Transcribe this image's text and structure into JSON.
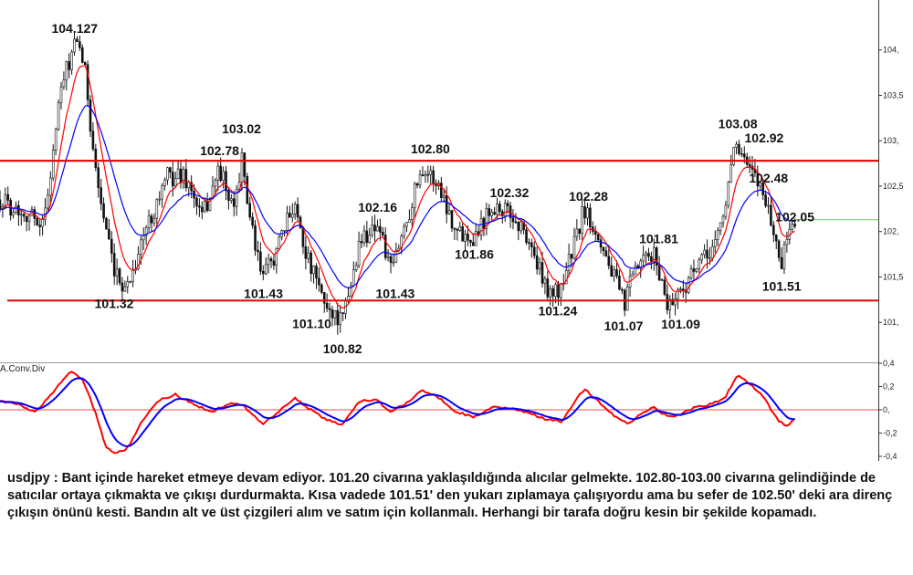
{
  "chart_data": [
    {
      "type": "candlestick",
      "title": "usdjpy",
      "ylim": [
        100.6,
        104.55
      ],
      "yticks": [
        "104,",
        "103,5",
        "103,",
        "102,5",
        "102,",
        "101,5",
        "101,"
      ],
      "horizontal_lines": [
        {
          "value": 102.78,
          "color": "#e01010"
        },
        {
          "value": 101.24,
          "color": "#e01010"
        },
        {
          "value": 102.13,
          "color": "#66cc66"
        }
      ],
      "series": [
        {
          "color": "#ff0000",
          "desc": "fast moving average"
        },
        {
          "color": "#0000ff",
          "desc": "slow moving average"
        }
      ],
      "key_levels": [
        {
          "label": "104.127",
          "x": 0.085,
          "value": 104.127
        },
        {
          "label": "101.32",
          "x": 0.13,
          "value": 101.32
        },
        {
          "label": "102.78",
          "x": 0.25,
          "value": 102.78
        },
        {
          "label": "103.02",
          "x": 0.275,
          "value": 103.02
        },
        {
          "label": "101.43",
          "x": 0.3,
          "value": 101.43
        },
        {
          "label": "101.10",
          "x": 0.355,
          "value": 101.1
        },
        {
          "label": "100.82",
          "x": 0.39,
          "value": 100.82
        },
        {
          "label": "102.16",
          "x": 0.43,
          "value": 102.16
        },
        {
          "label": "101.43",
          "x": 0.45,
          "value": 101.43
        },
        {
          "label": "102.80",
          "x": 0.49,
          "value": 102.8
        },
        {
          "label": "101.86",
          "x": 0.54,
          "value": 101.86
        },
        {
          "label": "102.32",
          "x": 0.58,
          "value": 102.32
        },
        {
          "label": "101.24",
          "x": 0.635,
          "value": 101.24
        },
        {
          "label": "102.28",
          "x": 0.67,
          "value": 102.28
        },
        {
          "label": "101.07",
          "x": 0.71,
          "value": 101.07
        },
        {
          "label": "101.81",
          "x": 0.75,
          "value": 101.81
        },
        {
          "label": "101.09",
          "x": 0.775,
          "value": 101.09
        },
        {
          "label": "103.08",
          "x": 0.84,
          "value": 103.08
        },
        {
          "label": "102.92",
          "x": 0.87,
          "value": 102.92
        },
        {
          "label": "102.48",
          "x": 0.875,
          "value": 102.48
        },
        {
          "label": "102.05",
          "x": 0.905,
          "value": 102.05
        },
        {
          "label": "101.51",
          "x": 0.89,
          "value": 101.51
        }
      ],
      "price_path": [
        [
          0.0,
          102.35
        ],
        [
          0.03,
          102.2
        ],
        [
          0.05,
          102.1
        ],
        [
          0.07,
          103.6
        ],
        [
          0.085,
          104.05
        ],
        [
          0.095,
          103.9
        ],
        [
          0.11,
          102.6
        ],
        [
          0.13,
          101.5
        ],
        [
          0.145,
          101.4
        ],
        [
          0.165,
          102.0
        ],
        [
          0.19,
          102.6
        ],
        [
          0.21,
          102.62
        ],
        [
          0.23,
          102.15
        ],
        [
          0.25,
          102.7
        ],
        [
          0.265,
          102.2
        ],
        [
          0.275,
          102.8
        ],
        [
          0.29,
          101.8
        ],
        [
          0.3,
          101.5
        ],
        [
          0.32,
          101.9
        ],
        [
          0.335,
          102.35
        ],
        [
          0.35,
          101.7
        ],
        [
          0.37,
          101.2
        ],
        [
          0.39,
          101.0
        ],
        [
          0.41,
          101.9
        ],
        [
          0.43,
          102.1
        ],
        [
          0.445,
          101.55
        ],
        [
          0.465,
          102.2
        ],
        [
          0.48,
          102.72
        ],
        [
          0.5,
          102.5
        ],
        [
          0.52,
          102.0
        ],
        [
          0.54,
          101.95
        ],
        [
          0.56,
          102.3
        ],
        [
          0.58,
          102.2
        ],
        [
          0.6,
          101.95
        ],
        [
          0.62,
          101.4
        ],
        [
          0.635,
          101.3
        ],
        [
          0.655,
          101.9
        ],
        [
          0.665,
          102.25
        ],
        [
          0.68,
          102.0
        ],
        [
          0.695,
          101.6
        ],
        [
          0.71,
          101.2
        ],
        [
          0.725,
          101.6
        ],
        [
          0.745,
          101.75
        ],
        [
          0.76,
          101.2
        ],
        [
          0.775,
          101.35
        ],
        [
          0.79,
          101.55
        ],
        [
          0.81,
          101.8
        ],
        [
          0.825,
          102.2
        ],
        [
          0.835,
          103.0
        ],
        [
          0.845,
          102.8
        ],
        [
          0.855,
          102.65
        ],
        [
          0.87,
          102.45
        ],
        [
          0.88,
          102.0
        ],
        [
          0.89,
          101.65
        ],
        [
          0.9,
          102.1
        ],
        [
          0.905,
          102.1
        ]
      ]
    },
    {
      "type": "line",
      "title": "A.Conv.Div",
      "ylim": [
        -0.4,
        0.4
      ],
      "yticks": [
        "0,4",
        "0,2",
        "0,",
        "-0,2",
        "-0,4"
      ],
      "horizontal_lines": [
        {
          "value": 0,
          "color": "#e01010"
        }
      ],
      "series": [
        {
          "color": "#ff0000",
          "desc": "MACD line"
        },
        {
          "color": "#0000ff",
          "desc": "signal line"
        }
      ],
      "macd_path": [
        [
          0.0,
          0.07
        ],
        [
          0.02,
          0.05
        ],
        [
          0.04,
          -0.02
        ],
        [
          0.06,
          0.15
        ],
        [
          0.08,
          0.33
        ],
        [
          0.095,
          0.25
        ],
        [
          0.11,
          -0.05
        ],
        [
          0.12,
          -0.32
        ],
        [
          0.13,
          -0.38
        ],
        [
          0.145,
          -0.33
        ],
        [
          0.16,
          -0.12
        ],
        [
          0.18,
          0.08
        ],
        [
          0.2,
          0.13
        ],
        [
          0.22,
          0.05
        ],
        [
          0.24,
          -0.02
        ],
        [
          0.26,
          0.05
        ],
        [
          0.275,
          0.05
        ],
        [
          0.29,
          -0.06
        ],
        [
          0.3,
          -0.12
        ],
        [
          0.32,
          0.0
        ],
        [
          0.335,
          0.1
        ],
        [
          0.35,
          0.02
        ],
        [
          0.37,
          -0.08
        ],
        [
          0.39,
          -0.13
        ],
        [
          0.41,
          0.08
        ],
        [
          0.43,
          0.08
        ],
        [
          0.445,
          -0.02
        ],
        [
          0.465,
          0.07
        ],
        [
          0.48,
          0.17
        ],
        [
          0.5,
          0.1
        ],
        [
          0.52,
          -0.02
        ],
        [
          0.54,
          -0.06
        ],
        [
          0.56,
          0.02
        ],
        [
          0.58,
          0.02
        ],
        [
          0.6,
          -0.02
        ],
        [
          0.62,
          -0.08
        ],
        [
          0.64,
          -0.1
        ],
        [
          0.655,
          0.08
        ],
        [
          0.665,
          0.18
        ],
        [
          0.68,
          0.08
        ],
        [
          0.7,
          -0.06
        ],
        [
          0.715,
          -0.12
        ],
        [
          0.73,
          -0.03
        ],
        [
          0.745,
          0.02
        ],
        [
          0.76,
          -0.06
        ],
        [
          0.775,
          -0.04
        ],
        [
          0.79,
          0.02
        ],
        [
          0.81,
          0.05
        ],
        [
          0.825,
          0.1
        ],
        [
          0.84,
          0.3
        ],
        [
          0.855,
          0.22
        ],
        [
          0.87,
          0.1
        ],
        [
          0.885,
          -0.08
        ],
        [
          0.895,
          -0.15
        ],
        [
          0.905,
          -0.08
        ]
      ]
    }
  ],
  "commentary": "usdjpy : Bant içinde hareket etmeye devam ediyor. 101.20 civarına yaklaşıldığında alıcılar gelmekte. 102.80-103.00 civarına gelindiğinde de satıcılar ortaya çıkmakta ve çıkışı durdurmakta. Kısa vadede 101.51' den yukarı zıplamaya çalışıyordu ama bu sefer de 102.50' deki ara direnç çıkışın önünü kesti. Bandın alt ve üst çizgileri alım ve satım için kollanmalı. Herhangi bir tarafa doğru kesin bir şekilde kopamadı."
}
